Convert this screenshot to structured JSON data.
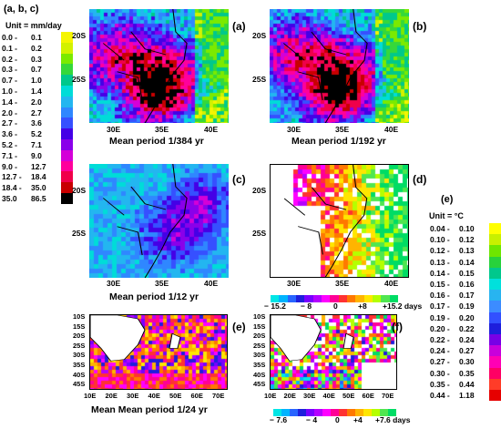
{
  "legend_left": {
    "header": "(a, b, c)",
    "unit": "Unit = mm/day",
    "rows": [
      {
        "lo": "0.0 -",
        "hi": "0.1",
        "color": "#f5f500"
      },
      {
        "lo": "0.1 -",
        "hi": "0.2",
        "color": "#d2f200"
      },
      {
        "lo": "0.2 -",
        "hi": "0.3",
        "color": "#7bea00"
      },
      {
        "lo": "0.3 -",
        "hi": "0.7",
        "color": "#35d83a"
      },
      {
        "lo": "0.7 -",
        "hi": "1.0",
        "color": "#00c88c"
      },
      {
        "lo": "1.0 -",
        "hi": "1.4",
        "color": "#00dcd8"
      },
      {
        "lo": "1.4 -",
        "hi": "2.0",
        "color": "#23b6f0"
      },
      {
        "lo": "2.0 -",
        "hi": "2.7",
        "color": "#2f87ff"
      },
      {
        "lo": "2.7 -",
        "hi": "3.6",
        "color": "#3650ff"
      },
      {
        "lo": "3.6 -",
        "hi": "5.2",
        "color": "#4400e6"
      },
      {
        "lo": "5.2 -",
        "hi": "7.1",
        "color": "#8a00ea"
      },
      {
        "lo": "7.1 -",
        "hi": "9.0",
        "color": "#d400d8"
      },
      {
        "lo": "9.0 -",
        "hi": "12.7",
        "color": "#ff009c"
      },
      {
        "lo": "12.7 -",
        "hi": "18.4",
        "color": "#f0004a"
      },
      {
        "lo": "18.4 -",
        "hi": "35.0",
        "color": "#c80000"
      },
      {
        "lo": "35.0",
        "hi": "86.5",
        "color": "#000000"
      }
    ]
  },
  "legend_right": {
    "header": "(e)",
    "unit": "Unit = °C",
    "rows": [
      {
        "lo": "0.04 -",
        "hi": "0.10",
        "color": "#ffff00"
      },
      {
        "lo": "0.10 -",
        "hi": "0.12",
        "color": "#c8f000"
      },
      {
        "lo": "0.12 -",
        "hi": "0.13",
        "color": "#6ee600"
      },
      {
        "lo": "0.13 -",
        "hi": "0.14",
        "color": "#28d23c"
      },
      {
        "lo": "0.14 -",
        "hi": "0.15",
        "color": "#00c88c"
      },
      {
        "lo": "0.15 -",
        "hi": "0.16",
        "color": "#00e1dc"
      },
      {
        "lo": "0.16 -",
        "hi": "0.17",
        "color": "#28b4f0"
      },
      {
        "lo": "0.17 -",
        "hi": "0.19",
        "color": "#3c8cff"
      },
      {
        "lo": "0.19 -",
        "hi": "0.20",
        "color": "#3250ff"
      },
      {
        "lo": "0.20 -",
        "hi": "0.22",
        "color": "#1e1edc"
      },
      {
        "lo": "0.22 -",
        "hi": "0.24",
        "color": "#7800e6"
      },
      {
        "lo": "0.24 -",
        "hi": "0.27",
        "color": "#c800dc"
      },
      {
        "lo": "0.27 -",
        "hi": "0.30",
        "color": "#ff00b4"
      },
      {
        "lo": "0.30 -",
        "hi": "0.35",
        "color": "#ff0064"
      },
      {
        "lo": "0.35 -",
        "hi": "0.44",
        "color": "#ff3c28"
      },
      {
        "lo": "0.44 -",
        "hi": "1.18",
        "color": "#e60000"
      }
    ]
  },
  "panels": {
    "a": {
      "letter": "(a)",
      "title": "Mean period   1/384 yr",
      "yticks": [
        "20S",
        "25S"
      ],
      "xticks": [
        "30E",
        "35E",
        "40E"
      ]
    },
    "b": {
      "letter": "(b)",
      "title": "Mean period   1/192 yr",
      "yticks": [
        "20S",
        "25S"
      ],
      "xticks": [
        "30E",
        "35E",
        "40E"
      ]
    },
    "c": {
      "letter": "(c)",
      "title": "Mean period  1/12 yr",
      "yticks": [
        "20S",
        "25S"
      ],
      "xticks": [
        "30E",
        "35E",
        "40E"
      ]
    },
    "d": {
      "letter": "(d)",
      "yticks": [
        "20S",
        "25S"
      ],
      "xticks": [
        "30E",
        "35E",
        "40E"
      ],
      "colorbar_labels": [
        "− 15.2",
        "− 8",
        "0",
        "+8",
        "+15.2 days"
      ]
    },
    "e": {
      "letter": "(e)",
      "title": "Mean Mean period 1/24 yr",
      "yticks": [
        "10S",
        "15S",
        "20S",
        "25S",
        "30S",
        "35S",
        "40S",
        "45S"
      ],
      "xticks": [
        "10E",
        "20E",
        "30E",
        "40E",
        "50E",
        "60E",
        "70E"
      ]
    },
    "f": {
      "letter": "(f)",
      "yticks": [
        "10S",
        "15S",
        "20S",
        "25S",
        "30S",
        "35S",
        "40S",
        "45S"
      ],
      "xticks": [
        "10E",
        "20E",
        "30E",
        "40E",
        "50E",
        "60E",
        "70E"
      ],
      "colorbar_labels": [
        "− 7.6",
        "− 4",
        "0",
        "+4",
        "+7.6 days"
      ]
    }
  },
  "colorbar_colors": [
    "#00e6e6",
    "#00b4ff",
    "#2864ff",
    "#1e1edc",
    "#7800ff",
    "#b400ff",
    "#ff00ff",
    "#ff0096",
    "#ff3232",
    "#ff7800",
    "#ffb400",
    "#ffe600",
    "#b4ff00",
    "#50e650",
    "#00dc64"
  ]
}
